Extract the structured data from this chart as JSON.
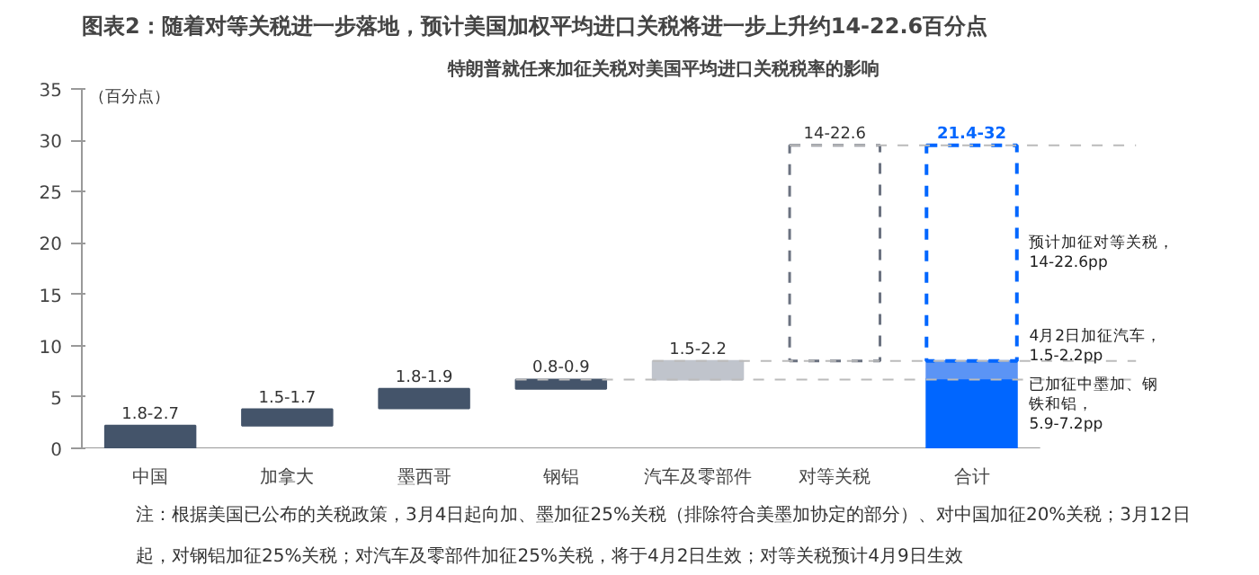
{
  "chart_data": {
    "type": "bar",
    "title": "图表2：随着对等关税进一步落地，预计美国加权平均进口关税将进一步上升约14-22.6百分点",
    "subtitle": "特朗普就任来加征关税对美国平均进口关税税率的影响",
    "ylabel": "（百分点）",
    "categories": [
      "中国",
      "加拿大",
      "墨西哥",
      "钢铝",
      "汽车及零部件",
      "对等关税",
      "合计"
    ],
    "stacked": true,
    "series": [
      {
        "values": [
          2.2,
          1.6,
          1.9,
          0.9,
          1.8,
          null,
          6.8
        ],
        "base": [
          0,
          2.2,
          3.9,
          5.8,
          6.7,
          null,
          0
        ],
        "colors": [
          "#44546a",
          "#44546a",
          "#44546a",
          "#44546a",
          "#c0c4cc",
          null,
          "#0066ff"
        ],
        "value_labels": [
          "1.8-2.7",
          "1.5-1.7",
          "1.8-1.9",
          "0.8-0.9",
          "1.5-2.2",
          null,
          null
        ]
      },
      {
        "values": [
          null,
          null,
          null,
          null,
          null,
          null,
          1.7
        ],
        "base": [
          null,
          null,
          null,
          null,
          null,
          null,
          6.8
        ],
        "color": "#5b94f5"
      },
      {
        "values": [
          null,
          null,
          null,
          null,
          null,
          21,
          21
        ],
        "base": [
          null,
          null,
          null,
          null,
          null,
          8.5,
          8.5
        ],
        "colors": [
          null,
          null,
          null,
          null,
          null,
          "#6b7280",
          "#0066ff"
        ],
        "line_style": "dashed",
        "value_labels": [
          null,
          null,
          null,
          null,
          null,
          "14-22.6",
          "21.4-32"
        ]
      }
    ],
    "ylim": [
      0,
      35
    ],
    "yticks": [
      0,
      5,
      10,
      15,
      20,
      25,
      30,
      35
    ],
    "grid": false,
    "ref_lines": [
      {
        "axis": "y",
        "value": 6.7,
        "color": "#bbbbbb",
        "line_style": "dashed"
      },
      {
        "axis": "y",
        "value": 8.5,
        "color": "#bbbbbb",
        "line_style": "dashed"
      },
      {
        "axis": "y",
        "value": 29.5,
        "color": "#bbbbbb",
        "line_style": "dashed"
      }
    ],
    "annotations": [
      "预计加征对等关税，14-22.6pp",
      "4月2日加征汽车，1.5-2.2pp",
      "已加征中墨加、钢铁和铝，5.9-7.2pp",
      "注：根据美国已公布的关税政策，3月4日起向加、墨加征25%关税（排除符合美墨加协定的部分）、对中国加征20%关税；3月12日起，对钢铝加征25%关税；对汽车及零部件加征25%关税，将于4月2日生效；对等关税预计4月9日生效"
    ]
  }
}
